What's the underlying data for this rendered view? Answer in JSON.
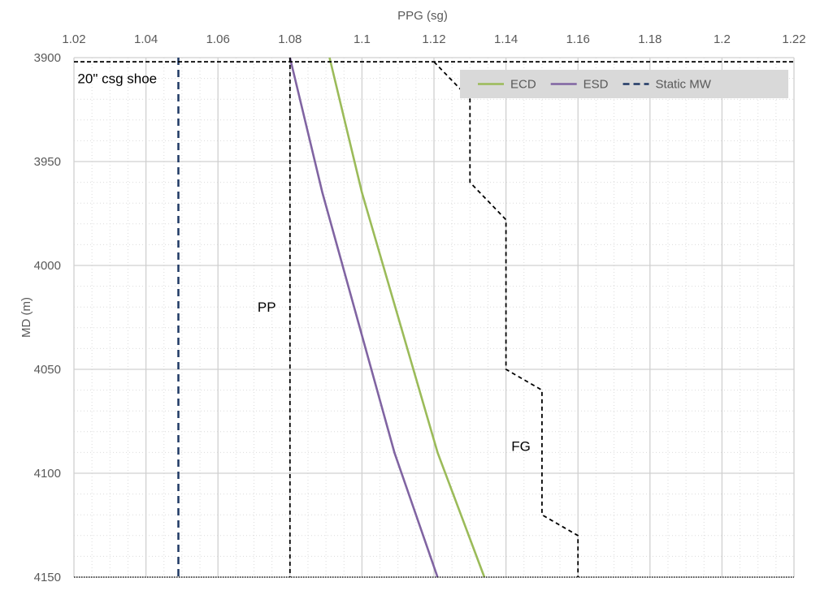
{
  "chart_data": {
    "type": "line",
    "xlabel": "PPG (sg)",
    "ylabel": "MD (m)",
    "xlim": [
      1.02,
      1.22
    ],
    "ylim": [
      3900,
      4150
    ],
    "y_inverted": true,
    "x_axis_position": "top",
    "x_ticks": [
      1.02,
      1.04,
      1.06,
      1.08,
      1.1,
      1.12,
      1.14,
      1.16,
      1.18,
      1.2,
      1.22
    ],
    "x_tick_labels": [
      "1.02",
      "1.04",
      "1.06",
      "1.08",
      "1.1",
      "1.12",
      "1.14",
      "1.16",
      "1.18",
      "1.2",
      "1.22"
    ],
    "y_ticks": [
      3900,
      3950,
      4000,
      4050,
      4100,
      4150
    ],
    "y_tick_labels": [
      "3900",
      "3950",
      "4000",
      "4050",
      "4100",
      "4150"
    ],
    "grid": true,
    "minor_grid": true,
    "legend_position": "top-right",
    "series": [
      {
        "name": "ECD",
        "color": "#9BBB59",
        "style": "solid",
        "in_legend": true,
        "x": [
          1.091,
          1.1,
          1.121,
          1.134
        ],
        "y": [
          3900,
          3965,
          4090,
          4150
        ]
      },
      {
        "name": "ESD",
        "color": "#8064A2",
        "style": "solid",
        "in_legend": true,
        "x": [
          1.08,
          1.089,
          1.109,
          1.121
        ],
        "y": [
          3900,
          3965,
          4090,
          4150
        ]
      },
      {
        "name": "Static MW",
        "color": "#1F3864",
        "style": "dashed",
        "in_legend": true,
        "x": [
          1.049,
          1.049
        ],
        "y": [
          3900,
          4150
        ]
      },
      {
        "name": "",
        "label": "PP",
        "color": "#000000",
        "style": "dashed",
        "in_legend": false,
        "x": [
          1.08,
          1.08
        ],
        "y": [
          3900,
          4150
        ]
      },
      {
        "name": "",
        "label": "FG",
        "color": "#000000",
        "style": "dashed",
        "in_legend": false,
        "x": [
          1.12,
          1.13,
          1.13,
          1.14,
          1.14,
          1.15,
          1.15,
          1.16,
          1.16
        ],
        "y": [
          3902,
          3920,
          3960,
          3978,
          4050,
          4060,
          4120,
          4130,
          4150
        ]
      }
    ],
    "annotations": [
      {
        "text": "20\" csg shoe",
        "x": 1.021,
        "y": 3910
      },
      {
        "text": "PP",
        "x": 1.071,
        "y": 4020
      },
      {
        "text": "FG",
        "x": 1.1415,
        "y": 4087
      }
    ],
    "reference_lines": [
      {
        "type": "horizontal",
        "y": 3902,
        "style": "dashed",
        "color": "#000000"
      },
      {
        "type": "horizontal",
        "y": 4150,
        "style": "dotted",
        "color": "#000000"
      }
    ]
  }
}
